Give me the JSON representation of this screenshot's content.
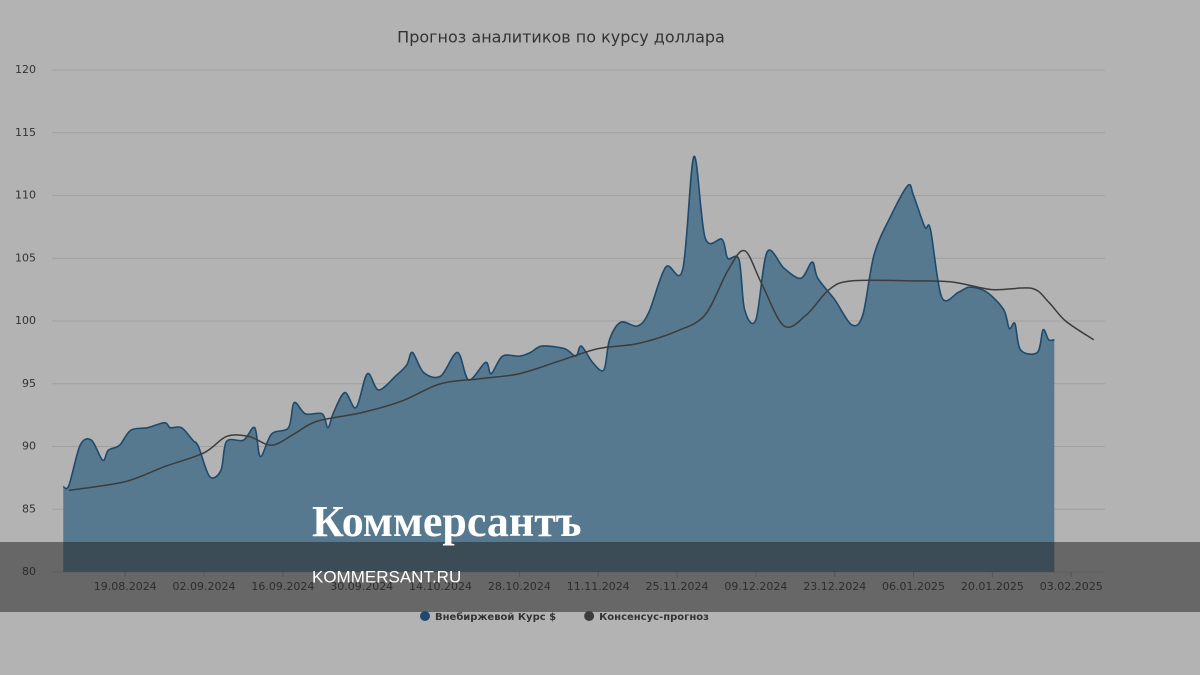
{
  "chart_data": {
    "type": "area-line",
    "title": "Прогноз аналитиков по курсу доллара",
    "xlim": [
      "06.08.2024",
      "09.02.2025"
    ],
    "xticks": [
      "19.08.2024",
      "02.09.2024",
      "16.09.2024",
      "30.09.2024",
      "14.10.2024",
      "28.10.2024",
      "11.11.2024",
      "25.11.2024",
      "09.12.2024",
      "23.12.2024",
      "06.01.2025",
      "20.01.2025",
      "03.02.2025"
    ],
    "ylim": [
      80,
      120
    ],
    "yticks": [
      80,
      85,
      90,
      95,
      100,
      105,
      110,
      115,
      120
    ],
    "grid": true,
    "legend": "bottom",
    "series": [
      {
        "name": "Внебиржевой Курс $",
        "kind": "area",
        "color": "#1d4a6e",
        "fill": "#56798f",
        "x": [
          "08.08.2024",
          "09.08.2024",
          "11.08.2024",
          "13.08.2024",
          "15.08.2024",
          "16.08.2024",
          "18.08.2024",
          "20.08.2024",
          "23.08.2024",
          "26.08.2024",
          "27.08.2024",
          "29.08.2024",
          "31.08.2024",
          "01.09.2024",
          "03.09.2024",
          "05.09.2024",
          "06.09.2024",
          "09.09.2024",
          "11.09.2024",
          "12.09.2024",
          "14.09.2024",
          "17.09.2024",
          "18.09.2024",
          "20.09.2024",
          "23.09.2024",
          "24.09.2024",
          "25.09.2024",
          "27.09.2024",
          "29.09.2024",
          "01.10.2024",
          "03.10.2024",
          "06.10.2024",
          "08.10.2024",
          "09.10.2024",
          "11.10.2024",
          "14.10.2024",
          "17.10.2024",
          "19.10.2024",
          "22.10.2024",
          "23.10.2024",
          "25.10.2024",
          "28.10.2024",
          "30.10.2024",
          "01.11.2024",
          "05.11.2024",
          "07.11.2024",
          "08.11.2024",
          "10.11.2024",
          "12.11.2024",
          "13.11.2024",
          "15.11.2024",
          "18.11.2024",
          "20.11.2024",
          "23.11.2024",
          "26.11.2024",
          "28.11.2024",
          "30.11.2024",
          "03.12.2024",
          "04.12.2024",
          "06.12.2024",
          "07.12.2024",
          "09.12.2024",
          "11.12.2024",
          "14.12.2024",
          "17.12.2024",
          "19.12.2024",
          "20.12.2024",
          "23.12.2024",
          "26.12.2024",
          "28.12.2024",
          "30.12.2024",
          "02.01.2025",
          "05.01.2025",
          "06.01.2025",
          "08.01.2025",
          "09.01.2025",
          "11.01.2025",
          "14.01.2025",
          "16.01.2025",
          "19.01.2025",
          "22.01.2025",
          "23.01.2025",
          "24.01.2025",
          "25.01.2025",
          "28.01.2025",
          "29.01.2025",
          "30.01.2025",
          "31.01.2025"
        ],
        "values": [
          86.8,
          86.9,
          90.1,
          90.5,
          88.9,
          89.7,
          90.1,
          91.3,
          91.5,
          91.9,
          91.5,
          91.5,
          90.5,
          90.0,
          87.6,
          88.1,
          90.4,
          90.5,
          91.5,
          89.2,
          91.0,
          91.5,
          93.5,
          92.6,
          92.6,
          91.5,
          92.7,
          94.3,
          93.1,
          95.8,
          94.5,
          95.6,
          96.5,
          97.5,
          95.9,
          95.6,
          97.5,
          95.3,
          96.7,
          95.8,
          97.2,
          97.2,
          97.5,
          98.0,
          97.8,
          97.2,
          98.0,
          96.7,
          96.1,
          98.5,
          99.9,
          99.6,
          100.7,
          104.3,
          104.1,
          113.1,
          106.6,
          106.5,
          105.0,
          104.9,
          100.9,
          100.1,
          105.5,
          104.2,
          103.4,
          104.7,
          103.4,
          101.7,
          99.7,
          100.5,
          105.3,
          108.4,
          110.8,
          110.0,
          107.5,
          107.3,
          101.9,
          102.3,
          102.7,
          102.3,
          100.9,
          99.4,
          99.8,
          97.7,
          97.5,
          99.3,
          98.5,
          98.5
        ]
      },
      {
        "name": "Консенсус-прогноз",
        "kind": "line",
        "color": "#3c3c3c",
        "x": [
          "09.08.2024",
          "19.08.2024",
          "26.08.2024",
          "02.09.2024",
          "06.09.2024",
          "10.09.2024",
          "14.09.2024",
          "18.09.2024",
          "22.09.2024",
          "30.09.2024",
          "07.10.2024",
          "14.10.2024",
          "21.10.2024",
          "28.10.2024",
          "04.11.2024",
          "11.11.2024",
          "18.11.2024",
          "25.11.2024",
          "30.11.2024",
          "04.12.2024",
          "07.12.2024",
          "10.12.2024",
          "14.12.2024",
          "18.12.2024",
          "22.12.2024",
          "26.12.2024",
          "06.01.2025",
          "13.01.2025",
          "20.01.2025",
          "27.01.2025",
          "30.01.2025",
          "02.02.2025",
          "07.02.2025"
        ],
        "values": [
          86.5,
          87.2,
          88.4,
          89.5,
          90.8,
          90.8,
          90.1,
          91.0,
          92.0,
          92.7,
          93.6,
          95.0,
          95.4,
          95.8,
          96.8,
          97.8,
          98.2,
          99.2,
          100.5,
          104.0,
          105.6,
          103.0,
          99.6,
          100.5,
          102.5,
          103.2,
          103.2,
          103.1,
          102.5,
          102.6,
          101.5,
          100.0,
          98.5
        ]
      }
    ]
  },
  "watermark": {
    "logo": "Коммерсантъ",
    "url": "KOMMERSANT.RU"
  }
}
